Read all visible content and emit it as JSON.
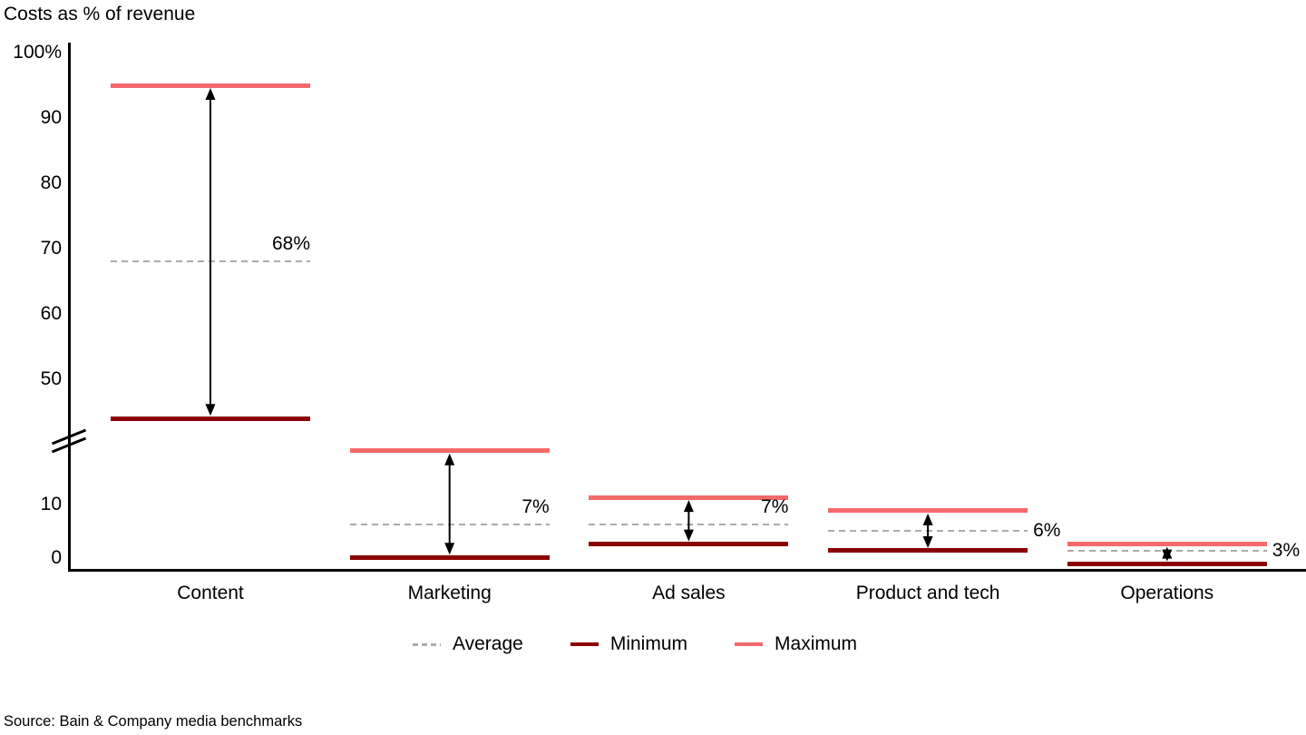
{
  "title": "Costs as % of revenue",
  "source": "Source: Bain & Company media benchmarks",
  "colors": {
    "maximum": "#f5696b",
    "minimum": "#8b0000",
    "average": "#ababab",
    "axis": "#000000",
    "text": "#000000"
  },
  "legend": {
    "items": [
      {
        "label": "Average",
        "series": "average",
        "style": "dashed"
      },
      {
        "label": "Minimum",
        "series": "minimum",
        "style": "solid"
      },
      {
        "label": "Maximum",
        "series": "maximum",
        "style": "solid"
      }
    ]
  },
  "chart_data": {
    "type": "range-bar (min/average/max lines with broken y-axis)",
    "title": "Costs as % of revenue",
    "ylabel": "Costs as % of revenue",
    "xlabel": "",
    "grid": false,
    "legend_position": "bottom-center",
    "categories": [
      "Content",
      "Marketing",
      "Ad sales",
      "Product and tech",
      "Operations"
    ],
    "series": [
      {
        "name": "Minimum",
        "values": [
          44,
          2,
          4,
          3,
          1
        ]
      },
      {
        "name": "Average",
        "values": [
          68,
          7,
          7,
          6,
          3
        ]
      },
      {
        "name": "Maximum",
        "values": [
          95,
          18,
          11,
          9,
          4
        ]
      }
    ],
    "average_labels": [
      "68%",
      "7%",
      "7%",
      "6%",
      "3%"
    ],
    "average_label_placement": [
      "above",
      "above",
      "above",
      "right",
      "right"
    ],
    "y_axis": {
      "has_break": true,
      "break_between_values": [
        20,
        43
      ],
      "upper_ticks": [
        {
          "value": 100,
          "label": "100%"
        },
        {
          "value": 90,
          "label": "90"
        },
        {
          "value": 80,
          "label": "80"
        },
        {
          "value": 70,
          "label": "70"
        },
        {
          "value": 60,
          "label": "60"
        },
        {
          "value": 50,
          "label": "50"
        }
      ],
      "lower_ticks": [
        {
          "value": 10,
          "label": "10"
        },
        {
          "value": 0,
          "label": "0"
        }
      ]
    }
  }
}
